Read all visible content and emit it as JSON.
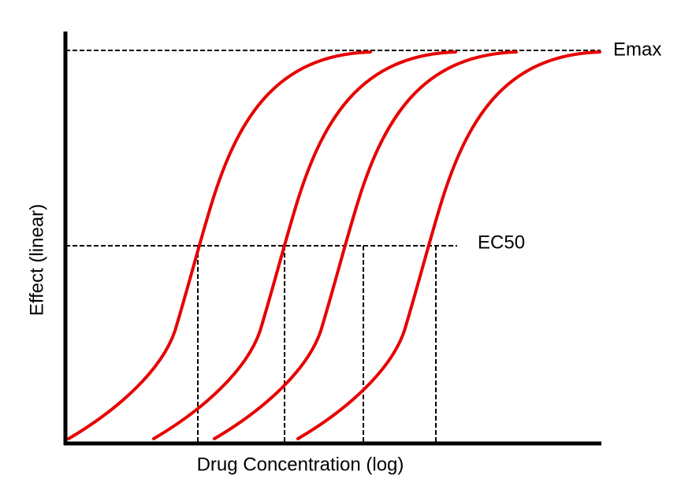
{
  "labels": {
    "emax": "Emax",
    "ec50": "EC50",
    "y_axis": "Effect (linear)",
    "x_axis": "Drug Concentration (log)"
  }
}
